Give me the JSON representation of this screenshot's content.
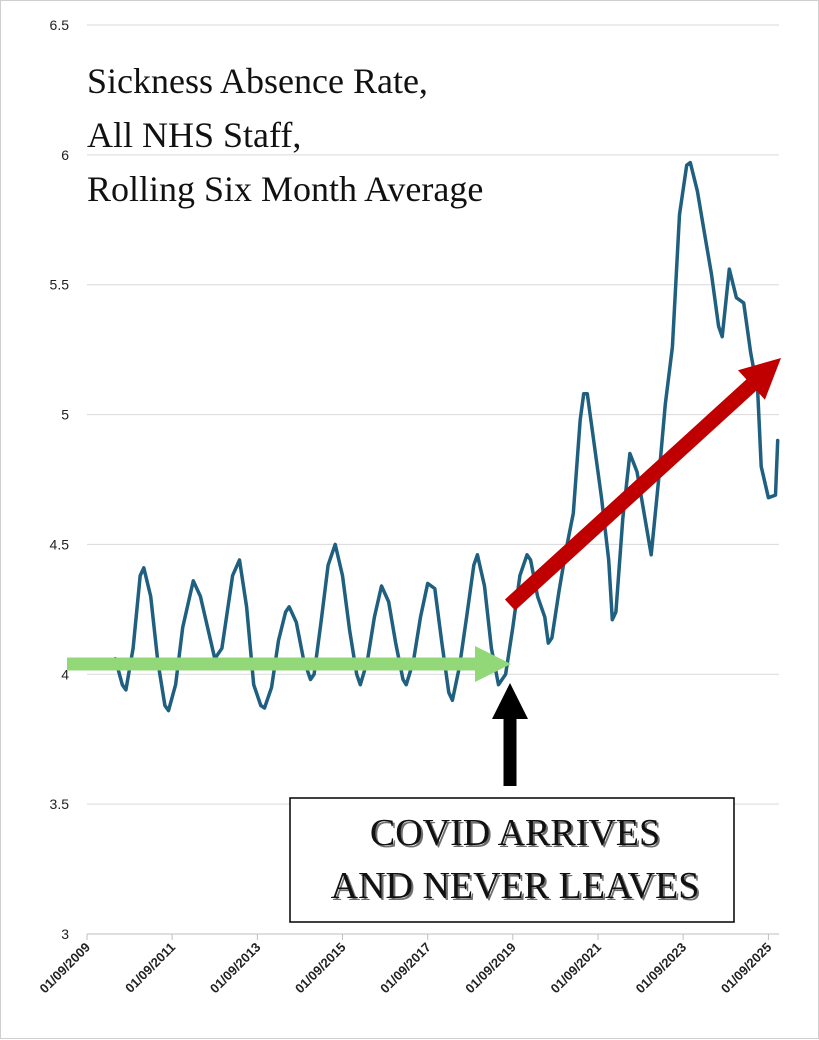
{
  "chart_data": {
    "type": "line",
    "title_lines": [
      "Sickness Absence Rate,",
      "All NHS Staff,",
      "Rolling Six Month Average"
    ],
    "xlabel": "",
    "ylabel": "",
    "ylim": [
      3,
      6.5
    ],
    "y_ticks": [
      "3",
      "3.5",
      "4",
      "4.5",
      "5",
      "5.5",
      "6",
      "6.5"
    ],
    "x_range": [
      "2009-09-01",
      "2025-12-01"
    ],
    "x_ticks": [
      "01/09/2009",
      "01/09/2011",
      "01/09/2013",
      "01/09/2015",
      "01/09/2017",
      "01/09/2019",
      "01/09/2021",
      "01/09/2023",
      "01/09/2025"
    ],
    "grid": "horizontal",
    "series": [
      {
        "color": "#1f5f80",
        "points": [
          [
            "2010-05-01",
            4.06
          ],
          [
            "2010-07-01",
            3.96
          ],
          [
            "2010-08-01",
            3.94
          ],
          [
            "2010-10-01",
            4.1
          ],
          [
            "2010-12-01",
            4.38
          ],
          [
            "2011-01-01",
            4.41
          ],
          [
            "2011-03-01",
            4.3
          ],
          [
            "2011-05-01",
            4.05
          ],
          [
            "2011-07-01",
            3.88
          ],
          [
            "2011-08-01",
            3.86
          ],
          [
            "2011-10-01",
            3.96
          ],
          [
            "2011-12-01",
            4.18
          ],
          [
            "2012-03-01",
            4.36
          ],
          [
            "2012-05-01",
            4.3
          ],
          [
            "2012-07-01",
            4.18
          ],
          [
            "2012-09-01",
            4.06
          ],
          [
            "2012-11-01",
            4.1
          ],
          [
            "2013-02-01",
            4.38
          ],
          [
            "2013-04-01",
            4.44
          ],
          [
            "2013-06-01",
            4.26
          ],
          [
            "2013-08-01",
            3.96
          ],
          [
            "2013-10-01",
            3.88
          ],
          [
            "2013-11-01",
            3.87
          ],
          [
            "2014-01-01",
            3.95
          ],
          [
            "2014-03-01",
            4.13
          ],
          [
            "2014-05-01",
            4.24
          ],
          [
            "2014-06-01",
            4.26
          ],
          [
            "2014-08-01",
            4.2
          ],
          [
            "2014-10-01",
            4.06
          ],
          [
            "2014-12-01",
            3.98
          ],
          [
            "2015-01-01",
            4.0
          ],
          [
            "2015-03-01",
            4.2
          ],
          [
            "2015-05-01",
            4.42
          ],
          [
            "2015-07-01",
            4.5
          ],
          [
            "2015-09-01",
            4.38
          ],
          [
            "2015-11-01",
            4.17
          ],
          [
            "2016-01-01",
            4.0
          ],
          [
            "2016-02-01",
            3.96
          ],
          [
            "2016-04-01",
            4.05
          ],
          [
            "2016-06-01",
            4.22
          ],
          [
            "2016-08-01",
            4.34
          ],
          [
            "2016-10-01",
            4.28
          ],
          [
            "2016-12-01",
            4.12
          ],
          [
            "2017-02-01",
            3.98
          ],
          [
            "2017-03-01",
            3.96
          ],
          [
            "2017-05-01",
            4.05
          ],
          [
            "2017-07-01",
            4.22
          ],
          [
            "2017-09-01",
            4.35
          ],
          [
            "2017-11-01",
            4.33
          ],
          [
            "2018-01-01",
            4.12
          ],
          [
            "2018-03-01",
            3.93
          ],
          [
            "2018-04-01",
            3.9
          ],
          [
            "2018-06-01",
            4.03
          ],
          [
            "2018-08-01",
            4.22
          ],
          [
            "2018-10-01",
            4.42
          ],
          [
            "2018-11-01",
            4.46
          ],
          [
            "2019-01-01",
            4.34
          ],
          [
            "2019-03-01",
            4.1
          ],
          [
            "2019-05-01",
            3.96
          ],
          [
            "2019-07-01",
            4.0
          ],
          [
            "2019-09-01",
            4.18
          ],
          [
            "2019-11-01",
            4.38
          ],
          [
            "2020-01-01",
            4.46
          ],
          [
            "2020-02-01",
            4.44
          ],
          [
            "2020-04-01",
            4.3
          ],
          [
            "2020-06-01",
            4.22
          ],
          [
            "2020-07-01",
            4.12
          ],
          [
            "2020-08-01",
            4.14
          ],
          [
            "2020-10-01",
            4.32
          ],
          [
            "2020-12-01",
            4.48
          ],
          [
            "2021-02-01",
            4.62
          ],
          [
            "2021-04-01",
            4.98
          ],
          [
            "2021-05-01",
            5.08
          ],
          [
            "2021-06-01",
            5.08
          ],
          [
            "2021-08-01",
            4.88
          ],
          [
            "2021-10-01",
            4.68
          ],
          [
            "2021-12-01",
            4.44
          ],
          [
            "2022-01-01",
            4.21
          ],
          [
            "2022-02-01",
            4.24
          ],
          [
            "2022-04-01",
            4.6
          ],
          [
            "2022-06-01",
            4.85
          ],
          [
            "2022-08-01",
            4.78
          ],
          [
            "2022-10-01",
            4.62
          ],
          [
            "2022-12-01",
            4.46
          ],
          [
            "2023-02-01",
            4.74
          ],
          [
            "2023-04-01",
            5.04
          ],
          [
            "2023-06-01",
            5.26
          ],
          [
            "2023-08-01",
            5.77
          ],
          [
            "2023-10-01",
            5.96
          ],
          [
            "2023-11-01",
            5.97
          ],
          [
            "2024-01-01",
            5.86
          ],
          [
            "2024-03-01",
            5.7
          ],
          [
            "2024-05-01",
            5.54
          ],
          [
            "2024-07-01",
            5.34
          ],
          [
            "2024-08-01",
            5.3
          ],
          [
            "2024-10-01",
            5.56
          ],
          [
            "2024-12-01",
            5.45
          ],
          [
            "2025-02-01",
            5.43
          ],
          [
            "2025-04-01",
            5.24
          ],
          [
            "2025-06-01",
            5.09
          ],
          [
            "2025-07-01",
            4.8
          ],
          [
            "2025-09-01",
            4.68
          ],
          [
            "2025-11-01",
            4.69
          ],
          [
            "2025-11-20",
            4.9
          ]
        ]
      }
    ],
    "annotations": {
      "callout_lines": [
        "COVID ARRIVES",
        "AND NEVER LEAVES"
      ],
      "green_arrow_color": "#92d878",
      "red_arrow_color": "#c00000",
      "black_arrow_color": "#000000"
    }
  }
}
